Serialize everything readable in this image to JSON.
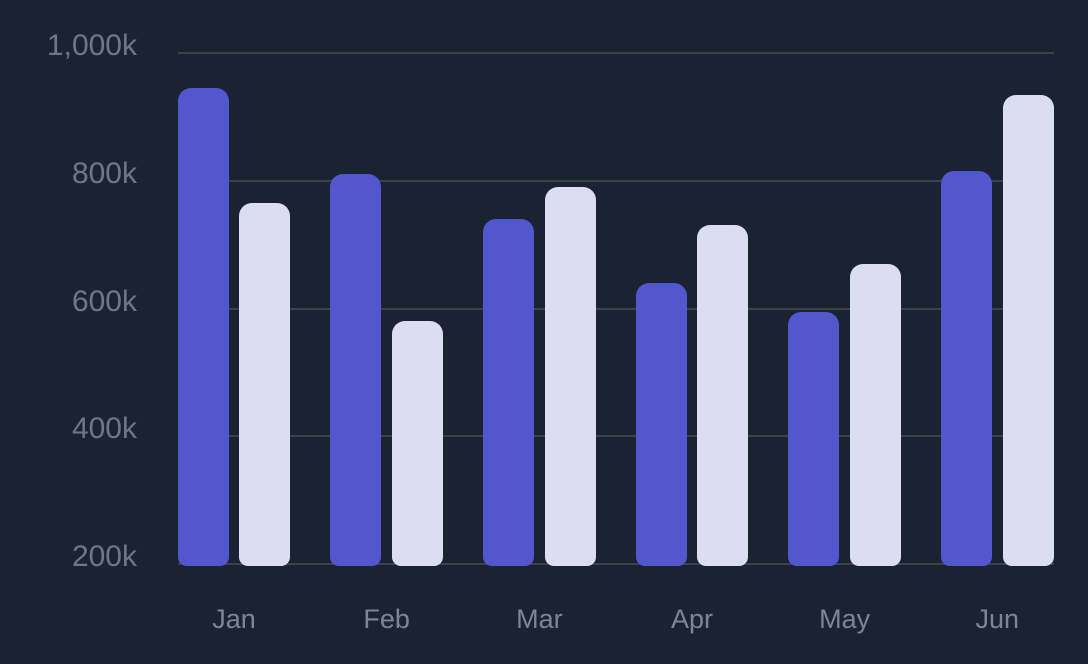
{
  "chart_data": {
    "type": "bar",
    "categories": [
      "Jan",
      "Feb",
      "Mar",
      "Apr",
      "May",
      "Jun"
    ],
    "series": [
      {
        "name": "indigo",
        "color": "#5257ce",
        "values": [
          945,
          810,
          740,
          640,
          595,
          815
        ]
      },
      {
        "name": "lavender",
        "color": "#dcddf3",
        "values": [
          765,
          580,
          790,
          730,
          670,
          935
        ]
      }
    ],
    "value_unit": "k",
    "y_ticks": [
      {
        "label": "1,000k",
        "value": 1000
      },
      {
        "label": "800k",
        "value": 800
      },
      {
        "label": "600k",
        "value": 600
      },
      {
        "label": "400k",
        "value": 400
      },
      {
        "label": "200k",
        "value": 200
      }
    ],
    "ylim": [
      200,
      1000
    ],
    "grid": true,
    "legend": false
  },
  "colors": {
    "background": "#1b2232",
    "gridline": "#39414f",
    "y_tick_label": "#6f7787",
    "x_label": "#7e8695"
  }
}
